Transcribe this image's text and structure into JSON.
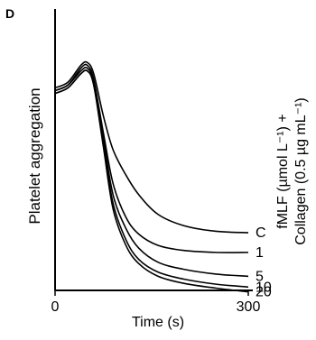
{
  "panel_label": "D",
  "chart_data": {
    "type": "line",
    "title": "",
    "xlabel": "Time (s)",
    "ylabel": "Platelet aggregation",
    "xlim": [
      0,
      300
    ],
    "ylim": [
      0,
      1
    ],
    "x_ticks": [
      0,
      300
    ],
    "x_tick_labels": [
      "0",
      "300"
    ],
    "grid": false,
    "legend": {
      "title": "fMLF (µmol L⁻¹) + Collagen (0.5 µg mL⁻¹)",
      "title_line1": "fMLF (µmol L⁻¹) +",
      "title_line2": "Collagen (0.5 µg mL⁻¹)",
      "placement": "right"
    },
    "series": [
      {
        "name": "C",
        "x": [
          0,
          20,
          40,
          50,
          60,
          75,
          90,
          110,
          130,
          160,
          200,
          250,
          300
        ],
        "y": [
          0.72,
          0.74,
          0.8,
          0.81,
          0.77,
          0.62,
          0.5,
          0.41,
          0.34,
          0.27,
          0.23,
          0.21,
          0.205
        ]
      },
      {
        "name": "1",
        "x": [
          0,
          20,
          40,
          50,
          60,
          75,
          90,
          110,
          130,
          160,
          200,
          250,
          300
        ],
        "y": [
          0.71,
          0.73,
          0.79,
          0.8,
          0.75,
          0.56,
          0.38,
          0.26,
          0.2,
          0.16,
          0.142,
          0.135,
          0.135
        ]
      },
      {
        "name": "5",
        "x": [
          0,
          20,
          40,
          50,
          60,
          75,
          90,
          110,
          130,
          160,
          200,
          250,
          300
        ],
        "y": [
          0.71,
          0.73,
          0.78,
          0.79,
          0.74,
          0.54,
          0.34,
          0.22,
          0.15,
          0.1,
          0.075,
          0.058,
          0.05
        ]
      },
      {
        "name": "10",
        "x": [
          0,
          20,
          40,
          50,
          60,
          75,
          90,
          110,
          130,
          160,
          200,
          250,
          300
        ],
        "y": [
          0.7,
          0.72,
          0.77,
          0.78,
          0.73,
          0.52,
          0.31,
          0.18,
          0.11,
          0.065,
          0.04,
          0.022,
          0.012
        ]
      },
      {
        "name": "20",
        "x": [
          0,
          20,
          40,
          50,
          60,
          75,
          90,
          110,
          130,
          160,
          200,
          250,
          300
        ],
        "y": [
          0.7,
          0.72,
          0.77,
          0.78,
          0.73,
          0.51,
          0.29,
          0.16,
          0.095,
          0.05,
          0.025,
          0.008,
          -0.005
        ]
      }
    ]
  }
}
